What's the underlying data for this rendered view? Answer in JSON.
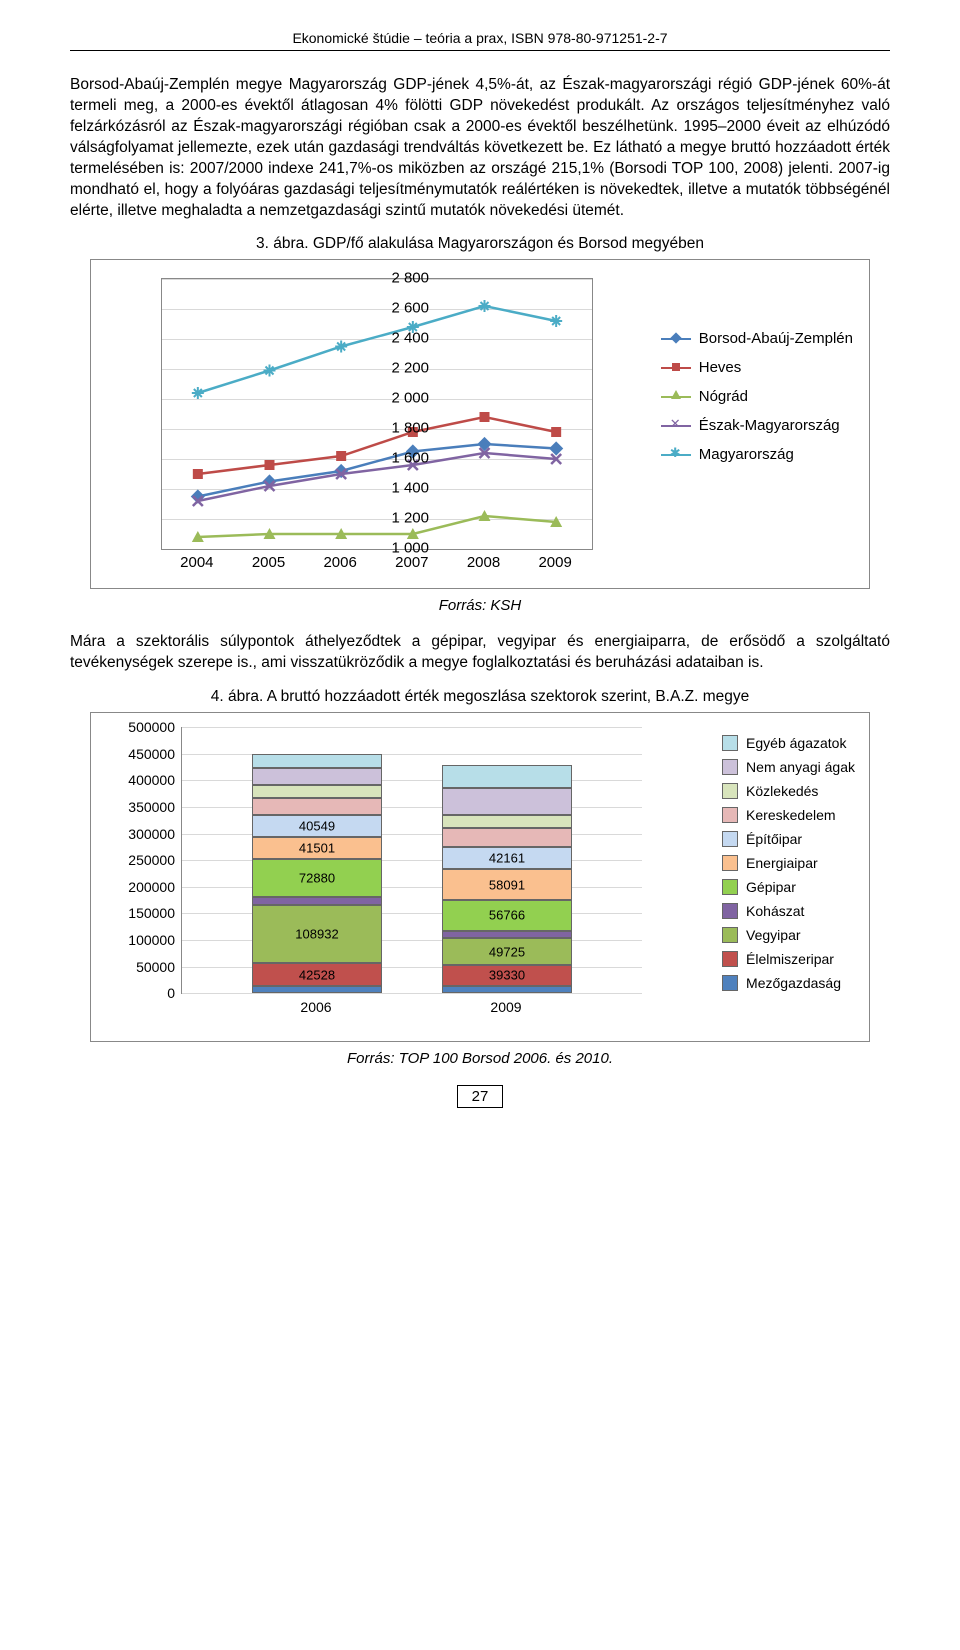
{
  "header": "Ekonomické štúdie – teória a prax, ISBN 978-80-971251-2-7",
  "para1": "Borsod-Abaúj-Zemplén megye Magyarország GDP-jének 4,5%-át, az Észak-magyarországi régió GDP-jének 60%-át termeli meg, a 2000-es évektől átlagosan 4% fölötti GDP növekedést produkált. Az országos teljesítményhez való felzárkózásról az Észak-magyarországi régióban csak a 2000-es évektől beszélhetünk. 1995–2000 éveit az elhúzódó válságfolyamat jellemezte, ezek után gazdasági trendváltás következett be. Ez látható a megye bruttó hozzáadott érték termelésében is: 2007/2000 indexe 241,7%-os miközben az országé 215,1% (Borsodi TOP 100, 2008) jelenti. 2007-ig mondható el, hogy a folyóáras gazdasági teljesítménymutatók reálértéken is növekedtek, illetve a mutatók többségénél elérte, illetve meghaladta a nemzetgazdasági szintű mutatók növekedési ütemét.",
  "caption1": "3. ábra. GDP/fő alakulása Magyarországon és Borsod megyében",
  "chart1": {
    "type": "line",
    "x": [
      "2004",
      "2005",
      "2006",
      "2007",
      "2008",
      "2009"
    ],
    "ylim": [
      1000,
      2800
    ],
    "ytick_step": 200,
    "yticks": [
      "1 000",
      "1 200",
      "1 400",
      "1 600",
      "1 800",
      "2 000",
      "2 200",
      "2 400",
      "2 600",
      "2 800"
    ],
    "background_color": "#ffffff",
    "grid_color": "#d9d9d9",
    "axis_fontsize": 15,
    "legend_fontsize": 15,
    "series": [
      {
        "name": "Borsod-Abaúj-Zemplén",
        "color": "#4a7ebb",
        "marker": "diamond",
        "values": [
          1350,
          1450,
          1520,
          1650,
          1700,
          1670
        ]
      },
      {
        "name": "Heves",
        "color": "#be4b48",
        "marker": "square",
        "values": [
          1500,
          1560,
          1620,
          1780,
          1880,
          1780
        ]
      },
      {
        "name": "Nógrád",
        "color": "#9bbb59",
        "marker": "triangle",
        "values": [
          1080,
          1100,
          1100,
          1100,
          1220,
          1180
        ]
      },
      {
        "name": "Észak-Magyarország",
        "color": "#8064a2",
        "marker": "x",
        "values": [
          1320,
          1420,
          1500,
          1560,
          1640,
          1600
        ]
      },
      {
        "name": "Magyarország",
        "color": "#4bacc6",
        "marker": "star",
        "values": [
          2040,
          2190,
          2350,
          2480,
          2620,
          2520
        ]
      }
    ]
  },
  "source1": "Forrás: KSH",
  "para2": "Mára a szektorális súlypontok áthelyeződtek a gépipar, vegyipar és energiaiparra, de erősödő a szolgáltató tevékenységek szerepe is., ami visszatükröződik a megye foglalkoztatási és beruházási adataiban is.",
  "caption2": "4. ábra. A bruttó hozzáadott érték megoszlása szektorok szerint, B.A.Z. megye",
  "chart2": {
    "type": "stacked-bar",
    "ylim": [
      0,
      500000
    ],
    "ytick_step": 50000,
    "yticks": [
      "0",
      "50000",
      "100000",
      "150000",
      "200000",
      "250000",
      "300000",
      "350000",
      "400000",
      "450000",
      "500000"
    ],
    "categories": [
      "2006",
      "2009"
    ],
    "axis_fontsize": 14,
    "legend_fontsize": 14,
    "legend": [
      {
        "name": "Egyéb ágazatok",
        "color": "#b7dee8"
      },
      {
        "name": "Nem anyagi ágak",
        "color": "#ccc1da"
      },
      {
        "name": "Közlekedés",
        "color": "#d8e4bc"
      },
      {
        "name": "Kereskedelem",
        "color": "#e6b8b7"
      },
      {
        "name": "Építőipar",
        "color": "#c5d9f1"
      },
      {
        "name": "Energiaipar",
        "color": "#fac08f"
      },
      {
        "name": "Gépipar",
        "color": "#92d050"
      },
      {
        "name": "Kohászat",
        "color": "#8064a2"
      },
      {
        "name": "Vegyipar",
        "color": "#9bbb59"
      },
      {
        "name": "Élelmiszeripar",
        "color": "#c0504d"
      },
      {
        "name": "Mezőgazdaság",
        "color": "#4f81bd"
      }
    ],
    "bars": [
      {
        "cat": "2006",
        "total": 450000,
        "segments": [
          {
            "name": "Mezőgazdaság",
            "value": 14000,
            "color": "#4f81bd",
            "label": ""
          },
          {
            "name": "Élelmiszeripar",
            "value": 42528,
            "color": "#c0504d",
            "label": "42528"
          },
          {
            "name": "Vegyipar",
            "value": 108932,
            "color": "#9bbb59",
            "label": "108932"
          },
          {
            "name": "Kohászat",
            "value": 15000,
            "color": "#8064a2",
            "label": ""
          },
          {
            "name": "Gépipar",
            "value": 72880,
            "color": "#92d050",
            "label": "72880"
          },
          {
            "name": "Energiaipar",
            "value": 41501,
            "color": "#fac08f",
            "label": "41501"
          },
          {
            "name": "Építőipar",
            "value": 40549,
            "color": "#c5d9f1",
            "label": "40549"
          },
          {
            "name": "Kereskedelem",
            "value": 32000,
            "color": "#e6b8b7",
            "label": ""
          },
          {
            "name": "Közlekedés",
            "value": 24000,
            "color": "#d8e4bc",
            "label": ""
          },
          {
            "name": "Nem anyagi ágak",
            "value": 33000,
            "color": "#ccc1da",
            "label": ""
          },
          {
            "name": "Egyéb ágazatok",
            "value": 25610,
            "color": "#b7dee8",
            "label": ""
          }
        ]
      },
      {
        "cat": "2009",
        "total": 430000,
        "segments": [
          {
            "name": "Mezőgazdaság",
            "value": 14000,
            "color": "#4f81bd",
            "label": ""
          },
          {
            "name": "Élelmiszeripar",
            "value": 39330,
            "color": "#c0504d",
            "label": "39330"
          },
          {
            "name": "Vegyipar",
            "value": 49725,
            "color": "#9bbb59",
            "label": "49725"
          },
          {
            "name": "Kohászat",
            "value": 15000,
            "color": "#8064a2",
            "label": ""
          },
          {
            "name": "Gépipar",
            "value": 56766,
            "color": "#92d050",
            "label": "56766"
          },
          {
            "name": "Energiaipar",
            "value": 58091,
            "color": "#fac08f",
            "label": "58091"
          },
          {
            "name": "Építőipar",
            "value": 42161,
            "color": "#c5d9f1",
            "label": "42161"
          },
          {
            "name": "Kereskedelem",
            "value": 35000,
            "color": "#e6b8b7",
            "label": ""
          },
          {
            "name": "Közlekedés",
            "value": 26000,
            "color": "#d8e4bc",
            "label": ""
          },
          {
            "name": "Nem anyagi ágak",
            "value": 50000,
            "color": "#ccc1da",
            "label": ""
          },
          {
            "name": "Egyéb ágazatok",
            "value": 43927,
            "color": "#b7dee8",
            "label": ""
          }
        ]
      }
    ]
  },
  "source2": "Forrás: TOP 100 Borsod 2006. és 2010.",
  "page_number": "27"
}
